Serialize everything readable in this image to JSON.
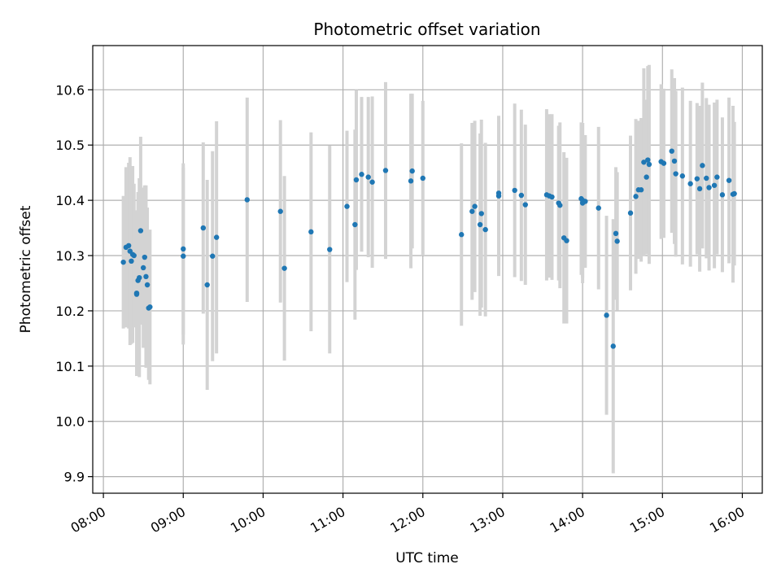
{
  "chart_data": {
    "type": "scatter",
    "title": "Photometric offset variation",
    "xlabel": "UTC time",
    "ylabel": "Photometric offset",
    "x_ticks": [
      "08:00",
      "09:00",
      "10:00",
      "11:00",
      "12:00",
      "13:00",
      "14:00",
      "15:00",
      "16:00"
    ],
    "y_ticks": [
      "9.9",
      "10.0",
      "10.1",
      "10.2",
      "10.3",
      "10.4",
      "10.5",
      "10.6"
    ],
    "xlim": [
      "07:52",
      "16:15"
    ],
    "ylim": [
      9.87,
      10.68
    ],
    "grid": true,
    "colors": {
      "point": "#1f77b4",
      "errorbar": "#d3d3d3",
      "grid": "#b0b0b0"
    },
    "series": [
      {
        "x": [
          "08:15",
          "08:17",
          "08:19",
          "08:20",
          "08:21",
          "08:22",
          "08:23",
          "08:25",
          "08:25",
          "08:26",
          "08:27",
          "08:28",
          "08:30",
          "08:31",
          "08:32",
          "08:33",
          "08:34",
          "08:35",
          "09:00",
          "09:00",
          "09:15",
          "09:18",
          "09:22",
          "09:25",
          "09:48",
          "10:13",
          "10:16",
          "10:36",
          "10:50",
          "11:03",
          "11:09",
          "11:10",
          "11:14",
          "11:19",
          "11:22",
          "11:32",
          "11:51",
          "11:52",
          "12:00",
          "12:29",
          "12:37",
          "12:39",
          "12:43",
          "12:44",
          "12:47",
          "12:57",
          "12:57",
          "13:09",
          "13:14",
          "13:17",
          "13:33",
          "13:35",
          "13:37",
          "13:42",
          "13:43",
          "13:46",
          "13:48",
          "13:59",
          "14:00",
          "14:00",
          "14:02",
          "14:12",
          "14:18",
          "14:23",
          "14:25",
          "14:26",
          "14:36",
          "14:40",
          "14:42",
          "14:44",
          "14:46",
          "14:48",
          "14:49",
          "14:50",
          "14:59",
          "15:01",
          "15:07",
          "15:09",
          "15:10",
          "15:15",
          "15:21",
          "15:26",
          "15:28",
          "15:30",
          "15:33",
          "15:35",
          "15:39",
          "15:41",
          "15:45",
          "15:50",
          "15:53",
          "15:54"
        ],
        "y": [
          10.288,
          10.315,
          10.318,
          10.308,
          10.29,
          10.302,
          10.3,
          10.23,
          10.232,
          10.255,
          10.26,
          10.345,
          10.278,
          10.297,
          10.262,
          10.247,
          10.205,
          10.207,
          10.312,
          10.299,
          10.35,
          10.247,
          10.299,
          10.333,
          10.401,
          10.38,
          10.277,
          10.343,
          10.311,
          10.389,
          10.356,
          10.437,
          10.447,
          10.442,
          10.433,
          10.454,
          10.435,
          10.453,
          10.44,
          10.338,
          10.38,
          10.389,
          10.356,
          10.376,
          10.347,
          10.413,
          10.408,
          10.418,
          10.409,
          10.392,
          10.41,
          10.408,
          10.406,
          10.395,
          10.391,
          10.332,
          10.327,
          10.403,
          10.395,
          10.4,
          10.398,
          10.386,
          10.192,
          10.136,
          10.34,
          10.326,
          10.377,
          10.407,
          10.419,
          10.419,
          10.469,
          10.442,
          10.473,
          10.465,
          10.47,
          10.467,
          10.489,
          10.471,
          10.448,
          10.444,
          10.43,
          10.439,
          10.421,
          10.463,
          10.44,
          10.423,
          10.427,
          10.442,
          10.41,
          10.436,
          10.411,
          10.412
        ],
        "yerr": [
          0.12,
          0.145,
          0.15,
          0.17,
          0.15,
          0.16,
          0.13,
          0.14,
          0.15,
          0.16,
          0.18,
          0.17,
          0.145,
          0.13,
          0.165,
          0.14,
          0.13,
          0.14,
          0.155,
          0.16,
          0.155,
          0.19,
          0.19,
          0.21,
          0.185,
          0.165,
          0.167,
          0.18,
          0.188,
          0.137,
          0.172,
          0.163,
          0.14,
          0.145,
          0.155,
          0.16,
          0.158,
          0.14,
          0.14,
          0.165,
          0.16,
          0.155,
          0.165,
          0.17,
          0.157,
          0.13,
          0.145,
          0.157,
          0.155,
          0.145,
          0.155,
          0.148,
          0.15,
          0.14,
          0.15,
          0.155,
          0.15,
          0.138,
          0.145,
          0.14,
          0.12,
          0.147,
          0.18,
          0.23,
          0.12,
          0.125,
          0.14,
          0.14,
          0.125,
          0.13,
          0.17,
          0.14,
          0.17,
          0.18,
          0.14,
          0.135,
          0.148,
          0.15,
          0.15,
          0.16,
          0.15,
          0.137,
          0.15,
          0.15,
          0.145,
          0.15,
          0.15,
          0.14,
          0.14,
          0.15,
          0.16,
          0.13
        ]
      }
    ]
  }
}
